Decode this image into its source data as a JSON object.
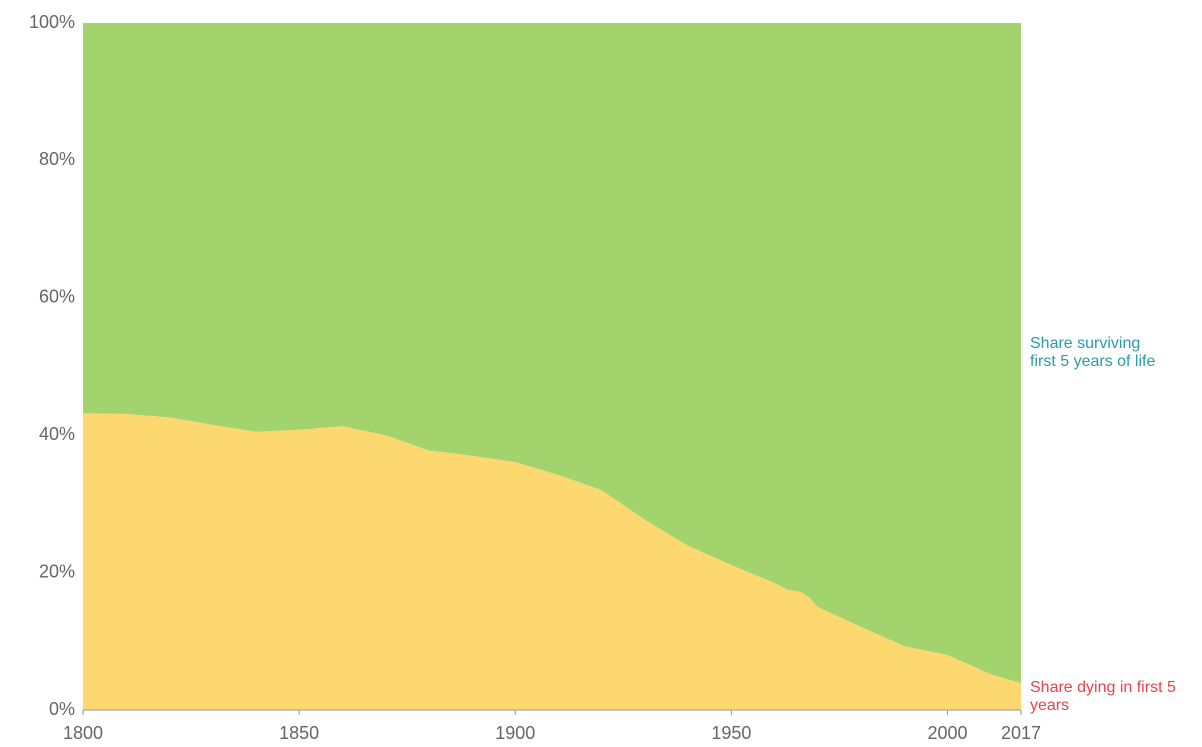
{
  "chart_data": {
    "type": "stacked_area",
    "x": [
      1800,
      1810,
      1820,
      1830,
      1840,
      1850,
      1860,
      1870,
      1880,
      1890,
      1900,
      1910,
      1920,
      1930,
      1940,
      1950,
      1960,
      1963,
      1966,
      1968,
      1970,
      1980,
      1990,
      2000,
      2010,
      2017
    ],
    "series": [
      {
        "name": "Share dying in first 5 years",
        "color": "#fdd76f",
        "label_color": "#e8424a",
        "values": [
          43.2,
          43.1,
          42.6,
          41.5,
          40.5,
          40.8,
          41.3,
          40.0,
          37.8,
          37.0,
          36.1,
          34.2,
          32.0,
          27.7,
          23.9,
          21.1,
          18.5,
          17.5,
          17.2,
          16.4,
          15.0,
          12.1,
          9.3,
          8.0,
          5.2,
          3.9
        ]
      },
      {
        "name": "Share surviving first 5 years of life",
        "color": "#a2d36c",
        "label_color": "#2c9ba8",
        "values": [
          56.8,
          56.9,
          57.4,
          58.5,
          59.5,
          59.2,
          58.7,
          60.0,
          62.2,
          63.0,
          63.9,
          65.8,
          68.0,
          72.3,
          76.1,
          78.9,
          81.5,
          82.5,
          82.8,
          83.6,
          85.0,
          87.9,
          90.7,
          92.0,
          94.8,
          96.1
        ]
      }
    ],
    "xlim": [
      1800,
      2017
    ],
    "xticks": [
      1800,
      1850,
      1900,
      1950,
      2000,
      2017
    ],
    "ylim": [
      0,
      100
    ],
    "yticks": [
      {
        "value": 0,
        "label": "0%"
      },
      {
        "value": 20,
        "label": "20%"
      },
      {
        "value": 40,
        "label": "40%"
      },
      {
        "value": 60,
        "label": "60%"
      },
      {
        "value": 80,
        "label": "80%"
      },
      {
        "value": 100,
        "label": "100%"
      }
    ],
    "grid": false
  }
}
